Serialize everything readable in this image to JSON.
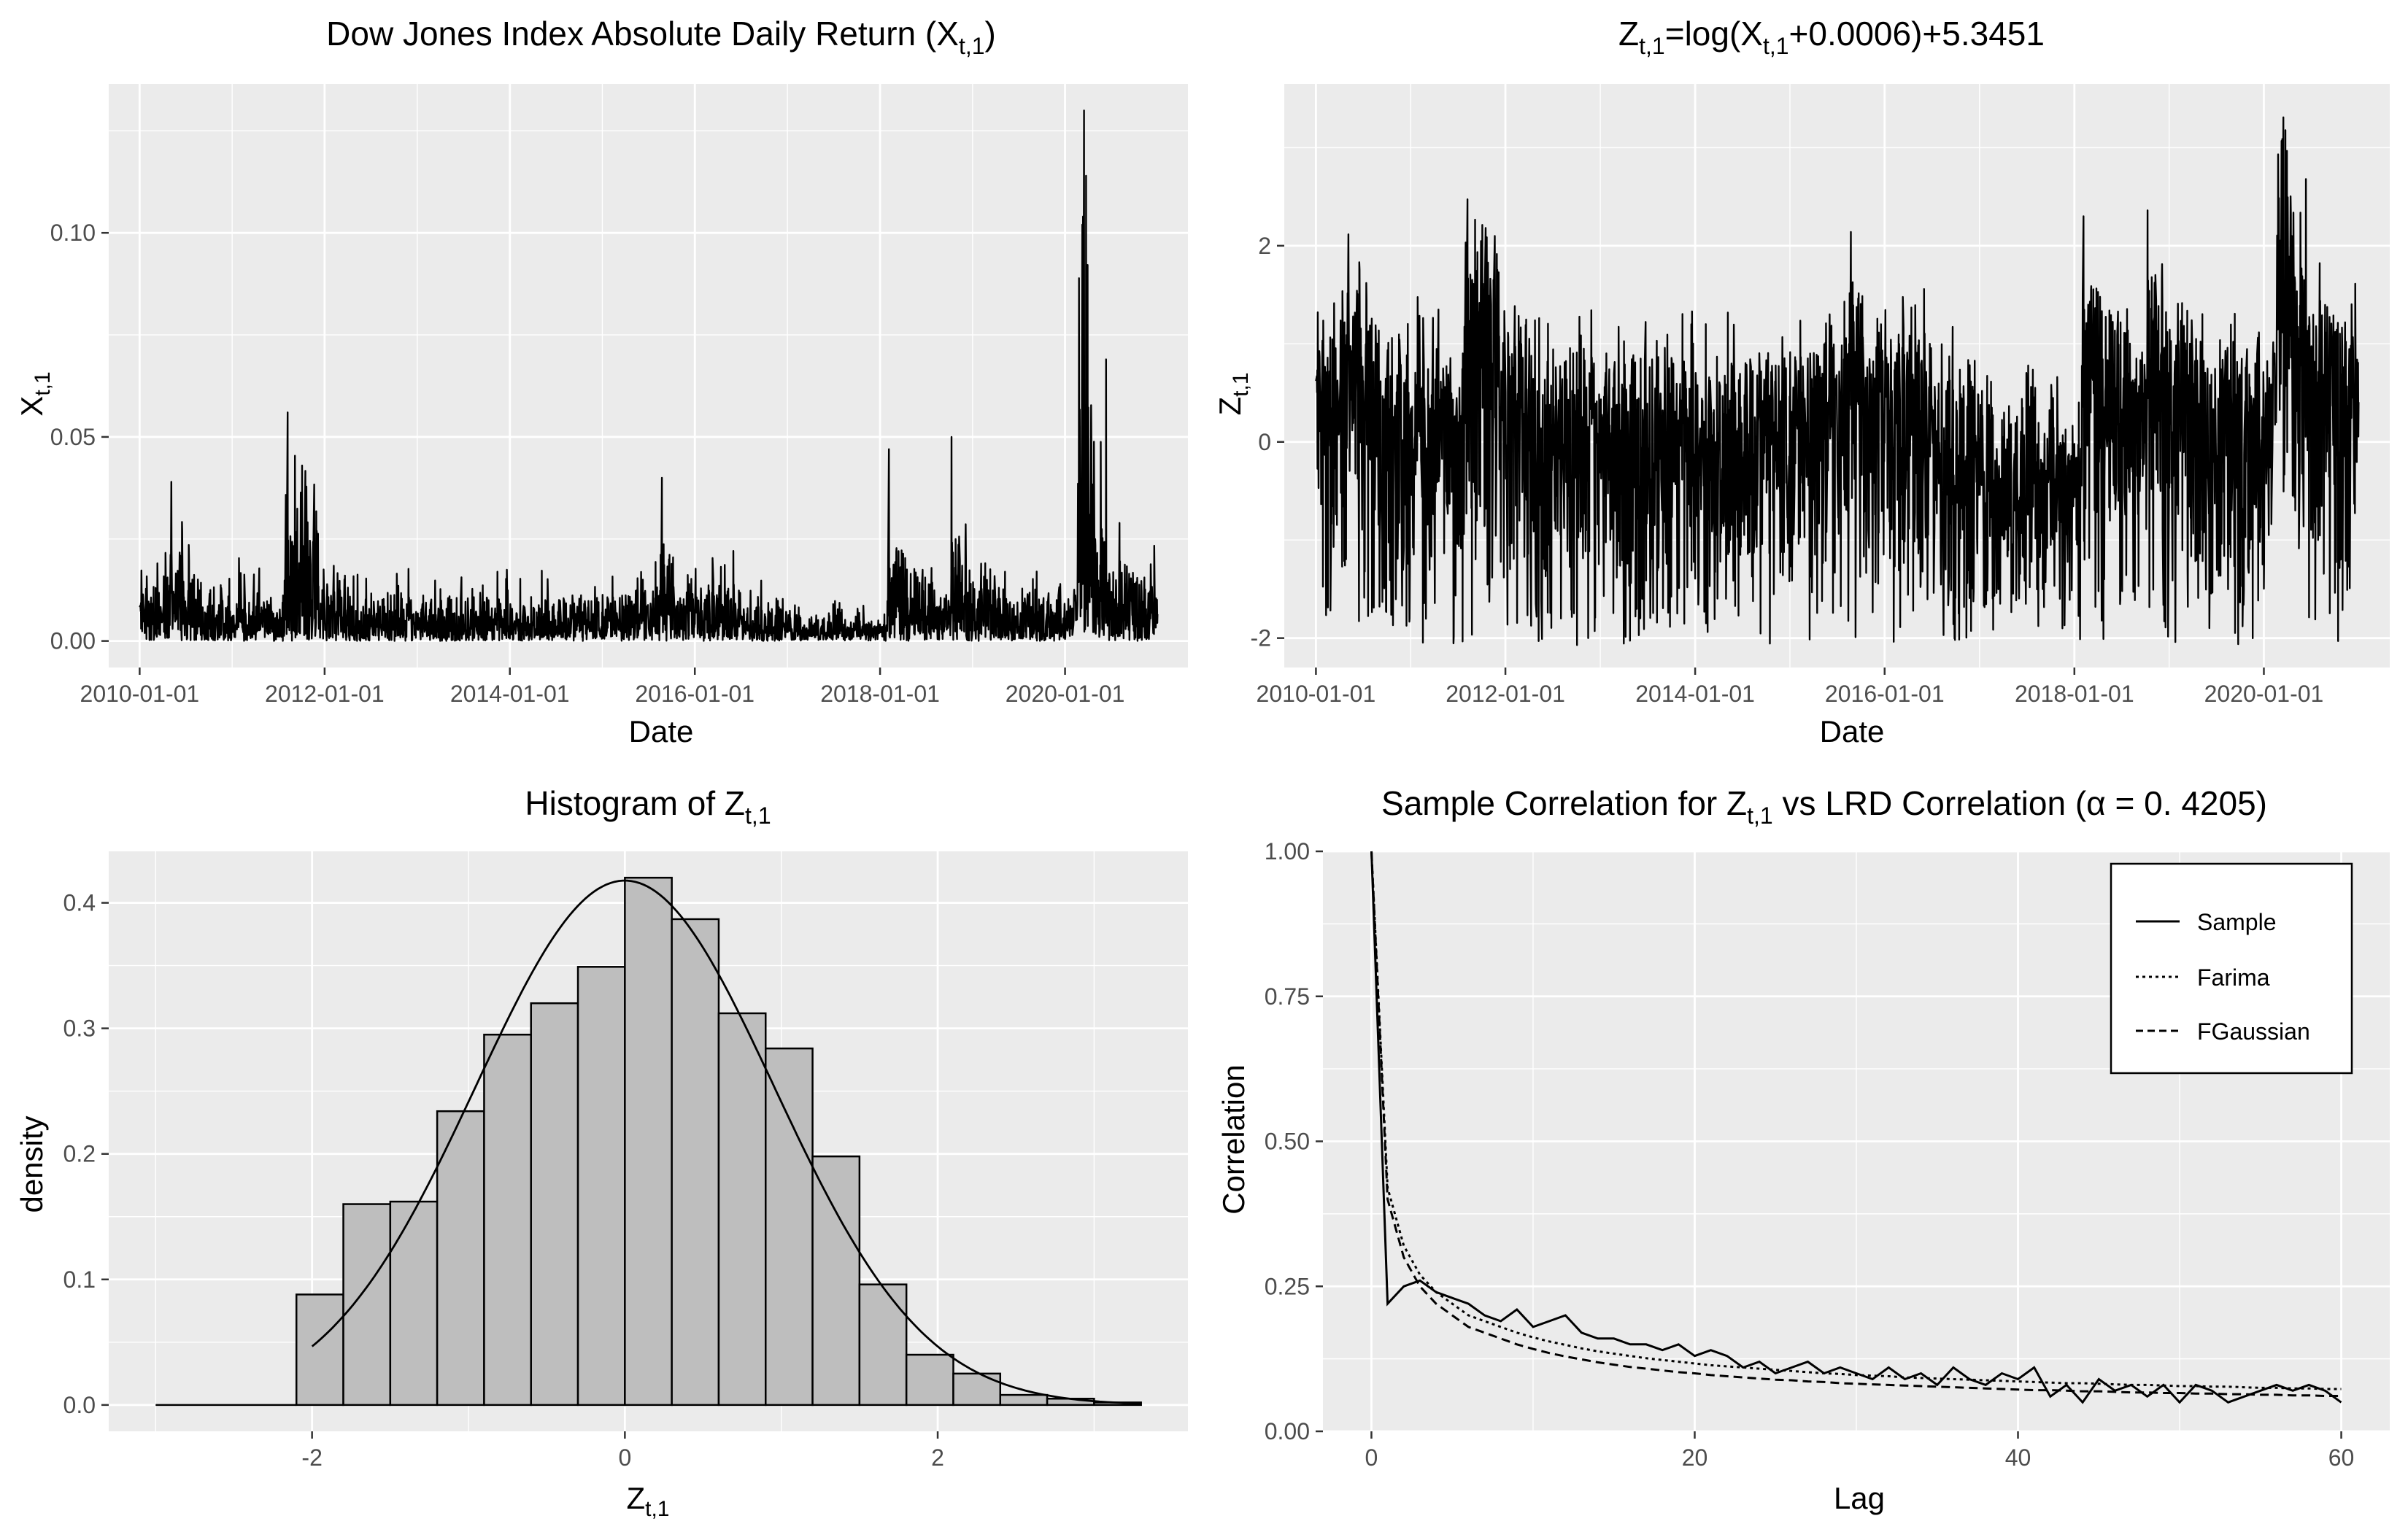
{
  "colors": {
    "panel_bg": "#EBEBEB",
    "grid_major": "#FFFFFF",
    "line": "#000000",
    "bar_fill": "#BEBEBE",
    "tick_text": "#4D4D4D"
  },
  "chart_data": [
    {
      "id": "p1",
      "type": "line",
      "title": "Dow Jones Index Absolute Daily Return (X",
      "title_sub": "t,1",
      "title_end": ")",
      "xlabel": "Date",
      "ylabel": "X",
      "ylabel_sub": "t,1",
      "x_range": [
        "2010-01-01",
        "2020-12-31"
      ],
      "xlim": [
        "2009-09-01",
        "2021-04-30"
      ],
      "x_ticks": [
        "2010-01-01",
        "2012-01-01",
        "2014-01-01",
        "2016-01-01",
        "2018-01-01",
        "2020-01-01"
      ],
      "ylim": [
        -0.0065,
        0.1365
      ],
      "y_ticks": [
        0.0,
        0.05,
        0.1
      ],
      "y_tick_labels": [
        "0.00",
        "0.05",
        "0.10"
      ],
      "grid": true,
      "series_description": "absolute daily returns, about 2768 trading days",
      "peaks": [
        {
          "x": "2010-05-06",
          "y": 0.039
        },
        {
          "x": "2011-08-08",
          "y": 0.056
        },
        {
          "x": "2011-10-04",
          "y": 0.043
        },
        {
          "x": "2015-08-24",
          "y": 0.04
        },
        {
          "x": "2018-02-05",
          "y": 0.047
        },
        {
          "x": "2018-10-10",
          "y": 0.05
        },
        {
          "x": "2020-03-09",
          "y": 0.102
        },
        {
          "x": "2020-03-12",
          "y": 0.104
        },
        {
          "x": "2020-03-16",
          "y": 0.13
        },
        {
          "x": "2020-03-24",
          "y": 0.114
        },
        {
          "x": "2020-06-11",
          "y": 0.069
        }
      ]
    },
    {
      "id": "p2",
      "type": "line",
      "title": "Z",
      "title_sub": "t,1",
      "title_end": "=log(X",
      "title_sub2": "t,1",
      "title_end2": "+0.0006)+5.3451",
      "xlabel": "Date",
      "ylabel": "Z",
      "ylabel_sub": "t,1",
      "x_range": [
        "2010-01-01",
        "2020-12-31"
      ],
      "xlim": [
        "2009-09-01",
        "2021-04-30"
      ],
      "x_ticks": [
        "2010-01-01",
        "2012-01-01",
        "2014-01-01",
        "2016-01-01",
        "2018-01-01",
        "2020-01-01"
      ],
      "ylim": [
        -2.3,
        3.65
      ],
      "y_ticks": [
        -2,
        0,
        2
      ],
      "y_tick_labels": [
        "-2",
        "0",
        "2"
      ],
      "grid": true,
      "series_description": "log-transformed absolute returns, roughly between -2.1 and 3.3",
      "peaks": [
        {
          "x": "2011-08-08",
          "y": 2.45
        },
        {
          "x": "2015-08-24",
          "y": 2.15
        },
        {
          "x": "2018-02-05",
          "y": 2.35
        },
        {
          "x": "2020-03-16",
          "y": 3.28
        }
      ]
    },
    {
      "id": "p3",
      "type": "bar",
      "title": "Histogram of Z",
      "title_sub": "t,1",
      "xlabel": "Z",
      "xlabel_sub": "t,1",
      "ylabel": "density",
      "xlim": [
        -3.3,
        3.6
      ],
      "ylim": [
        -0.021,
        0.441
      ],
      "x_ticks": [
        -2,
        0,
        2
      ],
      "x_tick_labels": [
        "-2",
        "0",
        "2"
      ],
      "y_ticks": [
        0.0,
        0.1,
        0.2,
        0.3,
        0.4
      ],
      "y_tick_labels": [
        "0.0",
        "0.1",
        "0.2",
        "0.3",
        "0.4"
      ],
      "grid": true,
      "bins": [
        {
          "x0": -2.1,
          "x1": -1.8,
          "density": 0.088
        },
        {
          "x0": -1.8,
          "x1": -1.5,
          "density": 0.16
        },
        {
          "x0": -1.5,
          "x1": -1.2,
          "density": 0.162
        },
        {
          "x0": -1.2,
          "x1": -0.9,
          "density": 0.234
        },
        {
          "x0": -0.9,
          "x1": -0.6,
          "density": 0.295
        },
        {
          "x0": -0.6,
          "x1": -0.3,
          "density": 0.32
        },
        {
          "x0": -0.3,
          "x1": 0.0,
          "density": 0.349
        },
        {
          "x0": 0.0,
          "x1": 0.3,
          "density": 0.42
        },
        {
          "x0": 0.3,
          "x1": 0.6,
          "density": 0.387
        },
        {
          "x0": 0.6,
          "x1": 0.9,
          "density": 0.312
        },
        {
          "x0": 0.9,
          "x1": 1.2,
          "density": 0.284
        },
        {
          "x0": 1.2,
          "x1": 1.5,
          "density": 0.198
        },
        {
          "x0": 1.5,
          "x1": 1.8,
          "density": 0.096
        },
        {
          "x0": 1.8,
          "x1": 2.1,
          "density": 0.04
        },
        {
          "x0": 2.1,
          "x1": 2.4,
          "density": 0.025
        },
        {
          "x0": 2.4,
          "x1": 2.7,
          "density": 0.008
        },
        {
          "x0": 2.7,
          "x1": 3.0,
          "density": 0.005
        },
        {
          "x0": 3.0,
          "x1": 3.3,
          "density": 0.002
        }
      ],
      "zero_line": {
        "x_start": -3.0,
        "x_end": -2.1
      },
      "density_curve": {
        "mean": 0.0,
        "sd": 0.955,
        "x_start": -2.0,
        "x_end": 3.3
      }
    },
    {
      "id": "p4",
      "type": "line",
      "title": "Sample Correlation for Z",
      "title_sub": "t,1",
      "title_end": " vs LRD Correlation (α = 0. 4205)",
      "xlabel": "Lag",
      "ylabel": "Correlation",
      "xlim": [
        -3,
        63
      ],
      "ylim": [
        0.0,
        1.0
      ],
      "x_ticks": [
        0,
        20,
        40,
        60
      ],
      "x_tick_labels": [
        "0",
        "20",
        "40",
        "60"
      ],
      "y_ticks": [
        0.0,
        0.25,
        0.5,
        0.75,
        1.0
      ],
      "y_tick_labels": [
        "0.00",
        "0.25",
        "0.50",
        "0.75",
        "1.00"
      ],
      "grid": true,
      "legend_position": "top-right",
      "alpha": 0.4205,
      "x": [
        0,
        1,
        2,
        3,
        4,
        5,
        6,
        7,
        8,
        9,
        10,
        11,
        12,
        13,
        14,
        15,
        16,
        17,
        18,
        19,
        20,
        21,
        22,
        23,
        24,
        25,
        26,
        27,
        28,
        29,
        30,
        31,
        32,
        33,
        34,
        35,
        36,
        37,
        38,
        39,
        40,
        41,
        42,
        43,
        44,
        45,
        46,
        47,
        48,
        49,
        50,
        51,
        52,
        53,
        54,
        55,
        56,
        57,
        58,
        59,
        60
      ],
      "series": [
        {
          "name": "Sample",
          "dash": "solid",
          "values": [
            1.0,
            0.22,
            0.25,
            0.26,
            0.24,
            0.23,
            0.22,
            0.2,
            0.19,
            0.21,
            0.18,
            0.19,
            0.2,
            0.17,
            0.16,
            0.16,
            0.15,
            0.15,
            0.14,
            0.15,
            0.13,
            0.14,
            0.13,
            0.11,
            0.12,
            0.1,
            0.11,
            0.12,
            0.1,
            0.11,
            0.1,
            0.09,
            0.11,
            0.09,
            0.1,
            0.08,
            0.11,
            0.09,
            0.08,
            0.1,
            0.09,
            0.11,
            0.06,
            0.08,
            0.05,
            0.09,
            0.07,
            0.08,
            0.06,
            0.08,
            0.05,
            0.08,
            0.07,
            0.05,
            0.06,
            0.07,
            0.08,
            0.07,
            0.08,
            0.07,
            0.05
          ]
        },
        {
          "name": "Farima",
          "dash": "dotted",
          "values": [
            1.0,
            0.42,
            0.32,
            0.27,
            0.24,
            0.22,
            0.2,
            0.19,
            0.18,
            0.17,
            0.162,
            0.155,
            0.149,
            0.143,
            0.138,
            0.134,
            0.13,
            0.126,
            0.123,
            0.12,
            0.117,
            0.114,
            0.112,
            0.11,
            0.108,
            0.106,
            0.104,
            0.102,
            0.1,
            0.099,
            0.097,
            0.096,
            0.095,
            0.093,
            0.092,
            0.091,
            0.09,
            0.089,
            0.088,
            0.087,
            0.086,
            0.085,
            0.084,
            0.083,
            0.083,
            0.082,
            0.081,
            0.08,
            0.08,
            0.079,
            0.078,
            0.078,
            0.077,
            0.077,
            0.076,
            0.075,
            0.075,
            0.074,
            0.074,
            0.073,
            0.073
          ]
        },
        {
          "name": "FGaussian",
          "dash": "dashed",
          "values": [
            1.0,
            0.4,
            0.3,
            0.25,
            0.22,
            0.2,
            0.18,
            0.17,
            0.16,
            0.15,
            0.142,
            0.135,
            0.129,
            0.124,
            0.119,
            0.115,
            0.111,
            0.108,
            0.105,
            0.102,
            0.1,
            0.097,
            0.095,
            0.093,
            0.091,
            0.089,
            0.088,
            0.086,
            0.085,
            0.083,
            0.082,
            0.081,
            0.08,
            0.079,
            0.078,
            0.077,
            0.076,
            0.075,
            0.074,
            0.073,
            0.072,
            0.071,
            0.071,
            0.07,
            0.069,
            0.069,
            0.068,
            0.067,
            0.067,
            0.066,
            0.066,
            0.065,
            0.065,
            0.064,
            0.064,
            0.063,
            0.063,
            0.062,
            0.062,
            0.061,
            0.061
          ]
        }
      ]
    }
  ]
}
